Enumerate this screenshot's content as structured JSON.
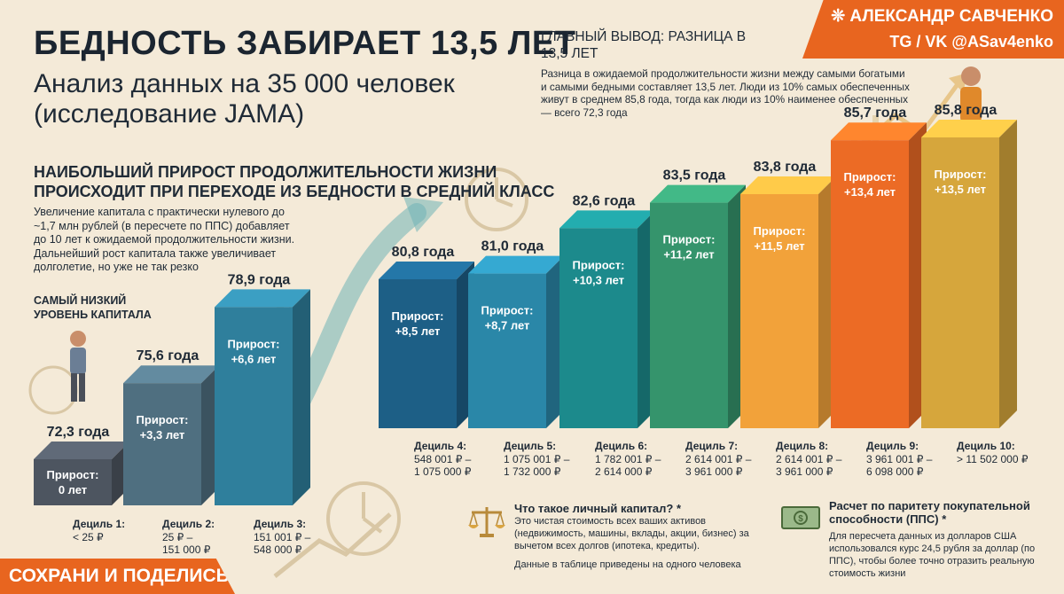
{
  "header": {
    "title": "БЕДНОСТЬ ЗАБИРАЕТ 13,5 ЛЕТ",
    "subtitle": "Анализ данных на 35 000 человек (исследование JAMA)"
  },
  "author": {
    "name": "❊ АЛЕКСАНДР САВЧЕНКО",
    "handle": "TG / VK  @ASav4enko"
  },
  "conclusion": {
    "heading": "ГЛАВНЫЙ ВЫВОД: РАЗНИЦА В 13,5 ЛЕТ",
    "text": "Разница в ожидаемой продолжительности жизни между самыми богатыми и самыми бедными составляет 13,5 лет. Люди из 10% самых обеспеченных живут в среднем 85,8 года, тогда как люди из 10% наименее обеспеченных — всего 72,3 года"
  },
  "section": {
    "heading": "НАИБОЛЬШИЙ ПРИРОСТ ПРОДОЛЖИТЕЛЬНОСТИ ЖИЗНИ ПРОИСХОДИТ ПРИ ПЕРЕХОДЕ ИЗ БЕДНОСТИ В СРЕДНИЙ КЛАСС",
    "text": "Увеличение капитала с практически нулевого до ~1,7 млн рублей (в пересчете по ППС) добавляет до 10 лет к ожидаемой продолжительности жизни. Дальнейший рост капитала также увеличивает долголетие, но уже не так резко",
    "low_label": "САМЫЙ НИЗКИЙ УРОВЕНЬ КАПИТАЛА"
  },
  "chart_data": {
    "type": "bar",
    "categories": [
      "Дециль 1:",
      "Дециль 2:",
      "Дециль 3:",
      "Дециль 4:",
      "Дециль 5:",
      "Дециль 6:",
      "Дециль 7:",
      "Дециль 8:",
      "Дециль 9:",
      "Дециль 10:"
    ],
    "ranges": [
      "< 25 ₽",
      "25 ₽ – 151 000 ₽",
      "151 001 ₽ – 548 000 ₽",
      "548 001 ₽ – 1 075 000 ₽",
      "1 075 001 ₽ – 1 732 000 ₽",
      "1 782 001 ₽ – 2 614 000 ₽",
      "2 614 001 ₽ – 3 961 000 ₽",
      "2 614 001 ₽ – 3 961 000 ₽",
      "3 961 001 ₽ – 6 098 000 ₽",
      "> 11 502 000 ₽"
    ],
    "values": [
      72.3,
      75.6,
      78.9,
      80.8,
      81.0,
      82.6,
      83.5,
      83.8,
      85.7,
      85.8
    ],
    "value_labels": [
      "72,3 года",
      "75,6 года",
      "78,9 года",
      "80,8 года",
      "81,0 года",
      "82,6 года",
      "83,5 года",
      "83,8 года",
      "85,7 года",
      "85,8 года"
    ],
    "growth_word": "Прирост:",
    "growth_labels": [
      "0 лет",
      "+3,3 лет",
      "+6,6 лет",
      "+8,5 лет",
      "+8,7 лет",
      "+10,3 лет",
      "+11,2 лет",
      "+11,5 лет",
      "+13,4 лет",
      "+13,5 лет"
    ],
    "colors": [
      "#4d5560",
      "#4f6f80",
      "#2f7f9c",
      "#1d5f86",
      "#2a87a8",
      "#1c8a8c",
      "#35946c",
      "#f2a23a",
      "#ec6b25",
      "#d6a63c"
    ]
  },
  "info": {
    "capital_title": "Что такое личный капитал? *",
    "capital_text": "Это чистая стоимость всех ваших активов (недвижимость, машины, вклады, акции, бизнес) за вычетом всех долгов (ипотека, кредиты).",
    "capital_note": "Данные в таблице приведены на одного человека",
    "ppp_title": "Расчет по паритету покупательной способности (ППС) *",
    "ppp_text": "Для пересчета данных из долларов США использовался курс 24,5 рубля за доллар (по ППС), чтобы более точно отразить реальную стоимость жизни"
  },
  "footer": {
    "save_label": "СОХРАНИ И ПОДЕЛИСЬ"
  }
}
